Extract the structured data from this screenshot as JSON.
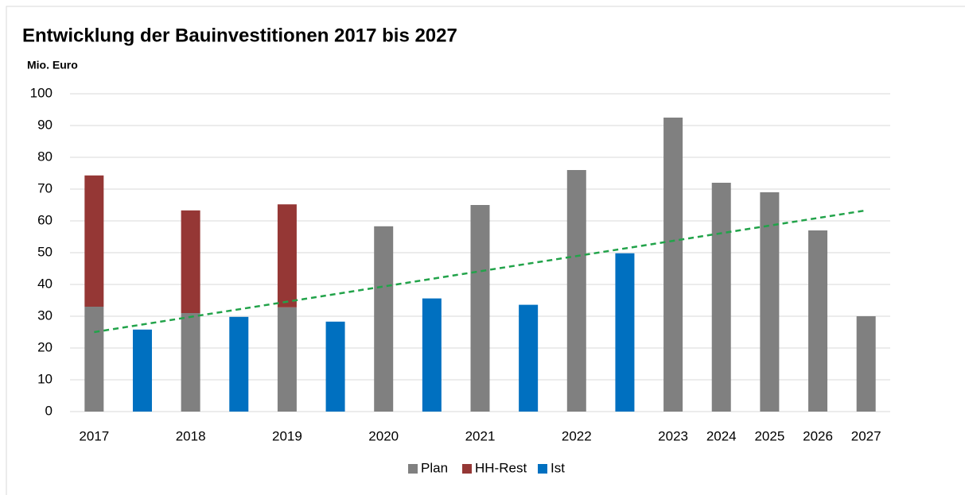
{
  "chart_data": {
    "type": "bar",
    "stacked": true,
    "title": "Entwicklung der Bauinvestitionen 2017 bis 2027",
    "y_label": "Mio. Euro",
    "categories": [
      "2017",
      null,
      "2018",
      null,
      "2019",
      null,
      "2020",
      null,
      "2021",
      null,
      "2022",
      null,
      "2023",
      "2024",
      "2025",
      "2026",
      "2027"
    ],
    "series": [
      {
        "name": "Plan",
        "color": "#808080",
        "values": [
          33,
          null,
          31,
          null,
          32.8,
          null,
          58.3,
          null,
          65,
          null,
          76,
          null,
          92.5,
          72,
          69,
          57,
          30
        ]
      },
      {
        "name": "HH-Rest",
        "color": "#953735",
        "values": [
          41.3,
          null,
          32.3,
          null,
          32.4,
          null,
          null,
          null,
          null,
          null,
          null,
          null,
          null,
          null,
          null,
          null,
          null
        ]
      },
      {
        "name": "Ist",
        "color": "#0070c0",
        "values": [
          null,
          25.8,
          null,
          29.8,
          null,
          28.3,
          null,
          35.6,
          null,
          33.6,
          null,
          49.8,
          null,
          null,
          null,
          null,
          null
        ]
      }
    ],
    "trendline": {
      "color": "#22a34a",
      "start": 25,
      "end": 63.3
    },
    "ylim": [
      0,
      100
    ],
    "yticks": [
      0,
      10,
      20,
      30,
      40,
      50,
      60,
      70,
      80,
      90,
      100
    ],
    "grid": true,
    "legend": "bottom"
  }
}
